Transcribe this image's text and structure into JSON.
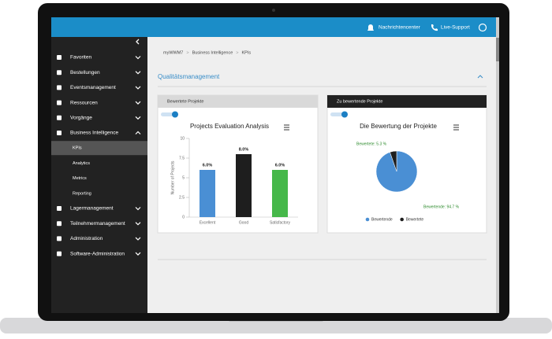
{
  "header": {
    "notifications": "Nachrichtencenter",
    "support": "Live-Support"
  },
  "sidebar": {
    "items": [
      {
        "label": "Favoriten"
      },
      {
        "label": "Bestellungen"
      },
      {
        "label": "Eventsmanagement"
      },
      {
        "label": "Ressourcen"
      },
      {
        "label": "Vorgänge"
      },
      {
        "label": "Business Intelligence",
        "children": [
          "KPIs",
          "Analytics",
          "Metrics",
          "Reporting"
        ]
      },
      {
        "label": "Lagermanagement"
      },
      {
        "label": "Teilnehmermanagement"
      },
      {
        "label": "Administration"
      },
      {
        "label": "Software-Administration"
      }
    ]
  },
  "breadcrumb": {
    "items": [
      "myWWM7",
      "Business Intelligence",
      "KPIs"
    ],
    "separator": ">"
  },
  "section": {
    "title": "Qualitätsmanagement"
  },
  "cards": [
    "Bewertete Projekte",
    "Zu bewertende Projekte"
  ],
  "chart_data": [
    {
      "type": "bar",
      "title": "Projects Evaluation Analysis",
      "y_label": "Number of Projects",
      "categories": [
        "Excellent",
        "Good",
        "Satisfactory"
      ],
      "values": [
        6,
        8,
        6
      ],
      "value_labels": [
        "6.0%",
        "8.0%",
        "6.0%"
      ],
      "colors": [
        "#4a8fd4",
        "#1e1e1e",
        "#46b84a"
      ],
      "ylim": [
        0,
        10
      ],
      "yticks": [
        0,
        2.5,
        5,
        7.5,
        10
      ]
    },
    {
      "type": "pie",
      "title": "Die Bewertung der Projekte",
      "categories": [
        "Bewertende",
        "Bewertete"
      ],
      "values": [
        94.7,
        5.3
      ],
      "value_labels": [
        "Bewertende: 94.7 %",
        "Bewertete: 5.3 %"
      ],
      "colors": [
        "#4a8fd4",
        "#1e1e1e"
      ]
    }
  ]
}
